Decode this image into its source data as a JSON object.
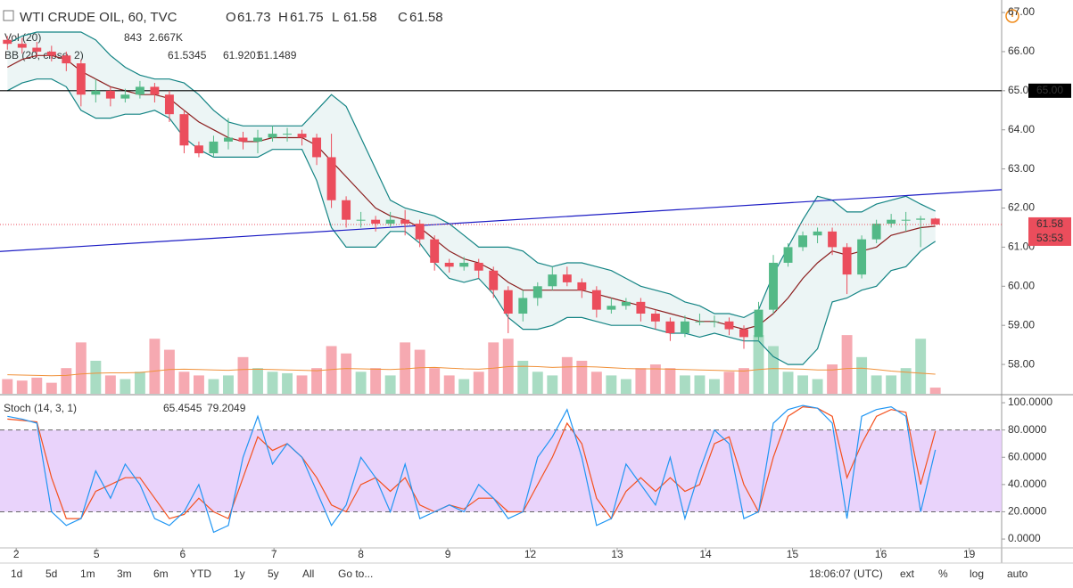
{
  "chart_data": {
    "type": "candlestick",
    "title": "WTI CRUDE OIL, 60, TVC",
    "ohlc_labels": [
      "O",
      "H",
      "L",
      "C"
    ],
    "up_color": "#53b987",
    "down_color": "#eb4d5c",
    "candles": [
      [
        66.3,
        66.4,
        66.05,
        66.2
      ],
      [
        66.2,
        66.35,
        65.95,
        66.1
      ],
      [
        66.1,
        66.25,
        65.85,
        66.0
      ],
      [
        66.0,
        66.15,
        65.75,
        65.9
      ],
      [
        65.9,
        66.0,
        65.5,
        65.7
      ],
      [
        65.7,
        65.8,
        64.6,
        64.9
      ],
      [
        64.9,
        65.3,
        64.7,
        65.0
      ],
      [
        65.0,
        65.1,
        64.6,
        64.8
      ],
      [
        64.8,
        65.05,
        64.7,
        64.9
      ],
      [
        64.9,
        65.25,
        64.8,
        65.1
      ],
      [
        65.1,
        65.2,
        64.7,
        64.9
      ],
      [
        64.9,
        65.0,
        64.2,
        64.4
      ],
      [
        64.4,
        64.5,
        63.4,
        63.6
      ],
      [
        63.6,
        63.7,
        63.3,
        63.4
      ],
      [
        63.4,
        63.85,
        63.3,
        63.7
      ],
      [
        63.7,
        64.3,
        63.5,
        63.8
      ],
      [
        63.8,
        63.95,
        63.5,
        63.7
      ],
      [
        63.7,
        64.0,
        63.4,
        63.8
      ],
      [
        63.8,
        64.1,
        63.7,
        63.9
      ],
      [
        63.9,
        64.05,
        63.7,
        63.9
      ],
      [
        63.9,
        64.0,
        63.6,
        63.8
      ],
      [
        63.8,
        63.9,
        63.1,
        63.3
      ],
      [
        63.3,
        63.9,
        62.0,
        62.2
      ],
      [
        62.2,
        62.3,
        61.5,
        61.7
      ],
      [
        61.7,
        61.9,
        61.5,
        61.7
      ],
      [
        61.7,
        61.8,
        61.4,
        61.6
      ],
      [
        61.6,
        61.9,
        61.5,
        61.7
      ],
      [
        61.7,
        61.95,
        61.3,
        61.6
      ],
      [
        61.6,
        61.7,
        61.0,
        61.2
      ],
      [
        61.2,
        61.3,
        60.4,
        60.6
      ],
      [
        60.6,
        60.7,
        60.35,
        60.5
      ],
      [
        60.5,
        60.75,
        60.4,
        60.6
      ],
      [
        60.6,
        60.7,
        60.2,
        60.4
      ],
      [
        60.4,
        60.5,
        59.7,
        59.9
      ],
      [
        59.9,
        60.0,
        58.8,
        59.3
      ],
      [
        59.3,
        59.9,
        59.1,
        59.7
      ],
      [
        59.7,
        60.1,
        59.5,
        60.0
      ],
      [
        60.0,
        60.5,
        59.9,
        60.3
      ],
      [
        60.3,
        60.5,
        60.0,
        60.1
      ],
      [
        60.1,
        60.2,
        59.7,
        59.9
      ],
      [
        59.9,
        60.0,
        59.2,
        59.4
      ],
      [
        59.4,
        59.7,
        59.3,
        59.5
      ],
      [
        59.5,
        59.7,
        59.4,
        59.6
      ],
      [
        59.6,
        59.7,
        59.1,
        59.3
      ],
      [
        59.3,
        59.4,
        58.9,
        59.1
      ],
      [
        59.1,
        59.2,
        58.6,
        58.8
      ],
      [
        58.8,
        59.25,
        58.7,
        59.1
      ],
      [
        59.1,
        59.3,
        59.0,
        59.1
      ],
      [
        59.1,
        59.25,
        58.95,
        59.1
      ],
      [
        59.1,
        59.2,
        58.75,
        58.9
      ],
      [
        58.9,
        59.0,
        58.4,
        58.7
      ],
      [
        58.7,
        59.6,
        58.6,
        59.4
      ],
      [
        59.4,
        60.8,
        59.3,
        60.6
      ],
      [
        60.6,
        61.1,
        60.5,
        61.0
      ],
      [
        61.0,
        61.4,
        60.9,
        61.3
      ],
      [
        61.3,
        61.5,
        61.1,
        61.4
      ],
      [
        61.4,
        61.5,
        60.8,
        61.0
      ],
      [
        61.0,
        61.1,
        59.8,
        60.3
      ],
      [
        60.3,
        61.3,
        60.2,
        61.2
      ],
      [
        61.2,
        61.7,
        61.1,
        61.6
      ],
      [
        61.6,
        61.85,
        61.5,
        61.7
      ],
      [
        61.7,
        61.9,
        61.4,
        61.7
      ],
      [
        61.7,
        61.8,
        61.0,
        61.73
      ],
      [
        61.73,
        61.75,
        61.58,
        61.58
      ]
    ],
    "xlim": [
      -0.5,
      67.5
    ],
    "xticks": [
      {
        "value": 0.6,
        "label": "2"
      },
      {
        "value": 6.05,
        "label": "5"
      },
      {
        "value": 11.9,
        "label": "6"
      },
      {
        "value": 18.1,
        "label": "7"
      },
      {
        "value": 24.0,
        "label": "8"
      },
      {
        "value": 29.9,
        "label": "9"
      },
      {
        "value": 35.5,
        "label": "12"
      },
      {
        "value": 41.4,
        "label": "13"
      },
      {
        "value": 47.4,
        "label": "14"
      },
      {
        "value": 53.3,
        "label": "15"
      },
      {
        "value": 59.3,
        "label": "16"
      },
      {
        "value": 65.3,
        "label": "19"
      }
    ],
    "ylim": [
      57.25,
      67.32
    ],
    "yticks": [
      {
        "value": 58,
        "label": "58.00"
      },
      {
        "value": 59,
        "label": "59.00"
      },
      {
        "value": 60,
        "label": "60.00"
      },
      {
        "value": 61,
        "label": "61.00"
      },
      {
        "value": 62,
        "label": "62.00"
      },
      {
        "value": 63,
        "label": "63.00"
      },
      {
        "value": 64,
        "label": "64.00"
      },
      {
        "value": 65,
        "label": "65.00"
      },
      {
        "value": 66,
        "label": "66.00"
      },
      {
        "value": 67,
        "label": "67.00"
      }
    ],
    "volume": {
      "name": "Vol (20)",
      "lim": [
        0,
        8500
      ],
      "ma_color": "#f0913a",
      "up_color": "#a9dcc3",
      "down_color": "#f6a9b1",
      "values": [
        2000,
        1800,
        2200,
        1500,
        3500,
        7000,
        4500,
        2500,
        2000,
        3000,
        7500,
        6000,
        3000,
        2500,
        2000,
        2500,
        5000,
        3500,
        3000,
        2800,
        2500,
        3500,
        6500,
        5500,
        3000,
        3500,
        2500,
        7000,
        6000,
        3500,
        2500,
        2000,
        3000,
        7000,
        7500,
        4500,
        3000,
        2500,
        5000,
        4500,
        3000,
        2500,
        2000,
        3500,
        4000,
        3500,
        2500,
        2500,
        2000,
        3000,
        3500,
        8000,
        6500,
        3000,
        2500,
        2000,
        4000,
        8000,
        5000,
        2500,
        2500,
        3500,
        7500,
        843
      ],
      "ma": [
        2600,
        2550,
        2500,
        2450,
        2500,
        2700,
        2800,
        2850,
        2850,
        2900,
        3100,
        3300,
        3350,
        3300,
        3250,
        3200,
        3300,
        3350,
        3300,
        3250,
        3200,
        3150,
        3300,
        3450,
        3400,
        3350,
        3300,
        3400,
        3550,
        3600,
        3500,
        3400,
        3350,
        3500,
        3700,
        3750,
        3700,
        3600,
        3650,
        3700,
        3650,
        3550,
        3450,
        3400,
        3400,
        3350,
        3300,
        3250,
        3200,
        3150,
        3100,
        3300,
        3450,
        3400,
        3350,
        3250,
        3250,
        3450,
        3500,
        3300,
        3100,
        2950,
        2800,
        2667
      ],
      "ma_label": "2.667K"
    },
    "bb": {
      "name": "BB (20, close, 2)",
      "mid_color": "#8b1e1e",
      "band_color": "#138484",
      "fill": "#138484",
      "mid": [
        65.6,
        65.8,
        65.9,
        65.9,
        65.8,
        65.5,
        65.3,
        65.1,
        65.0,
        64.9,
        64.9,
        64.8,
        64.5,
        64.2,
        64.0,
        63.8,
        63.7,
        63.7,
        63.8,
        63.8,
        63.8,
        63.6,
        63.2,
        62.8,
        62.4,
        62.0,
        61.8,
        61.7,
        61.5,
        61.2,
        60.9,
        60.7,
        60.6,
        60.4,
        60.1,
        59.9,
        59.9,
        59.9,
        59.9,
        59.9,
        59.8,
        59.7,
        59.6,
        59.5,
        59.4,
        59.3,
        59.2,
        59.1,
        59.1,
        59.0,
        58.9,
        59.0,
        59.3,
        59.7,
        60.2,
        60.6,
        60.9,
        60.8,
        60.9,
        61.0,
        61.3,
        61.4,
        61.5,
        61.5345
      ],
      "upper": [
        66.2,
        66.4,
        66.5,
        66.5,
        66.5,
        66.5,
        66.3,
        65.9,
        65.6,
        65.4,
        65.3,
        65.3,
        65.2,
        64.9,
        64.5,
        64.2,
        64.1,
        64.1,
        64.1,
        64.1,
        64.1,
        64.5,
        64.9,
        64.6,
        63.8,
        63.0,
        62.2,
        62.0,
        61.9,
        61.8,
        61.6,
        61.3,
        61.0,
        61.0,
        61.0,
        60.9,
        60.6,
        60.5,
        60.6,
        60.6,
        60.5,
        60.4,
        60.2,
        60.0,
        59.9,
        59.8,
        59.6,
        59.5,
        59.3,
        59.3,
        59.2,
        59.4,
        60.3,
        61.0,
        61.7,
        62.3,
        62.2,
        61.9,
        61.9,
        62.1,
        62.2,
        62.3,
        62.1,
        61.9201
      ],
      "lower": [
        65.0,
        65.2,
        65.3,
        65.3,
        65.1,
        64.5,
        64.3,
        64.3,
        64.4,
        64.4,
        64.5,
        64.3,
        63.8,
        63.5,
        63.3,
        63.3,
        63.3,
        63.3,
        63.5,
        63.5,
        63.5,
        62.7,
        61.5,
        61.0,
        61.0,
        61.0,
        61.4,
        61.4,
        61.1,
        60.6,
        60.2,
        60.1,
        60.2,
        59.8,
        59.2,
        58.9,
        58.9,
        59.0,
        59.2,
        59.2,
        59.1,
        59.0,
        59.0,
        59.0,
        58.9,
        58.8,
        58.8,
        58.7,
        58.8,
        58.7,
        58.6,
        58.6,
        58.2,
        58.0,
        58.0,
        58.4,
        59.6,
        59.7,
        59.9,
        60.0,
        60.4,
        60.5,
        60.9,
        61.1489
      ]
    },
    "stoch": {
      "name": "Stoch (14, 3, 1)",
      "k_color": "#2196f3",
      "d_color": "#f4511e",
      "band_fill": "#e3c8fa",
      "ylim": [
        -6.5,
        103.3
      ],
      "bands": [
        20,
        80
      ],
      "yticks": [
        {
          "value": 0,
          "label": "0.0000"
        },
        {
          "value": 20,
          "label": "20.0000"
        },
        {
          "value": 40,
          "label": "40.0000"
        },
        {
          "value": 60,
          "label": "60.0000"
        },
        {
          "value": 80,
          "label": "80.0000"
        },
        {
          "value": 100,
          "label": "100.0000"
        }
      ],
      "k": [
        90,
        88,
        85,
        20,
        10,
        15,
        50,
        30,
        55,
        40,
        15,
        10,
        20,
        40,
        5,
        10,
        60,
        90,
        55,
        70,
        60,
        35,
        10,
        25,
        60,
        45,
        20,
        55,
        15,
        20,
        25,
        20,
        40,
        30,
        15,
        20,
        60,
        75,
        95,
        60,
        10,
        15,
        55,
        40,
        25,
        60,
        15,
        50,
        80,
        70,
        15,
        20,
        85,
        95,
        98,
        96,
        85,
        15,
        90,
        95,
        97,
        90,
        20,
        65.4545
      ],
      "d": [
        88,
        87,
        86,
        45,
        15,
        15,
        35,
        40,
        45,
        45,
        30,
        15,
        18,
        30,
        20,
        15,
        45,
        75,
        65,
        70,
        60,
        45,
        25,
        20,
        40,
        45,
        35,
        45,
        25,
        20,
        25,
        22,
        30,
        30,
        20,
        20,
        40,
        60,
        85,
        70,
        30,
        15,
        35,
        45,
        35,
        45,
        35,
        40,
        70,
        75,
        40,
        20,
        60,
        90,
        97,
        96,
        90,
        45,
        70,
        90,
        95,
        93,
        40,
        79.2049
      ]
    },
    "hline": {
      "value": 65,
      "label": "65.00"
    },
    "trendline": {
      "x": [
        -0.5,
        67.5
      ],
      "y": [
        60.89,
        62.47
      ],
      "color": "#1c1cc4"
    },
    "countdown": "53:53",
    "toolbar": [
      "1d",
      "5d",
      "1m",
      "3m",
      "6m",
      "YTD",
      "1y",
      "5y",
      "All",
      "Go to..."
    ],
    "clock": "18:06:07 (UTC)",
    "toolbar_right": [
      "ext",
      "%",
      "log",
      "auto"
    ]
  }
}
